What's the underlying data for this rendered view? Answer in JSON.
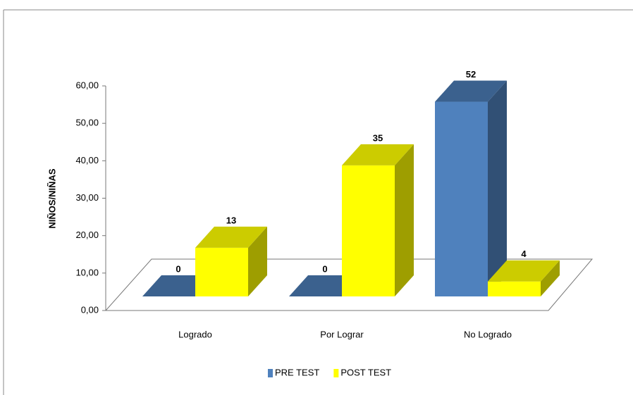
{
  "chart_data": {
    "type": "bar3d",
    "y_label": "NIÑOS/NIÑAS",
    "categories": [
      "Logrado",
      "Por Lograr",
      "No Logrado"
    ],
    "series": [
      {
        "name": "PRE TEST",
        "color": "#4f81bd",
        "values": [
          0,
          0,
          52
        ]
      },
      {
        "name": "POST TEST",
        "color": "#ffff00",
        "values": [
          13,
          35,
          4
        ]
      }
    ],
    "ylim": [
      0,
      60
    ],
    "yticks": [
      {
        "value": 0,
        "label": "0,00"
      },
      {
        "value": 10,
        "label": "10,00"
      },
      {
        "value": 20,
        "label": "20,00"
      },
      {
        "value": 30,
        "label": "30,00"
      },
      {
        "value": 40,
        "label": "40,00"
      },
      {
        "value": 50,
        "label": "50,00"
      },
      {
        "value": 60,
        "label": "60,00"
      }
    ],
    "legend": "bottom"
  }
}
